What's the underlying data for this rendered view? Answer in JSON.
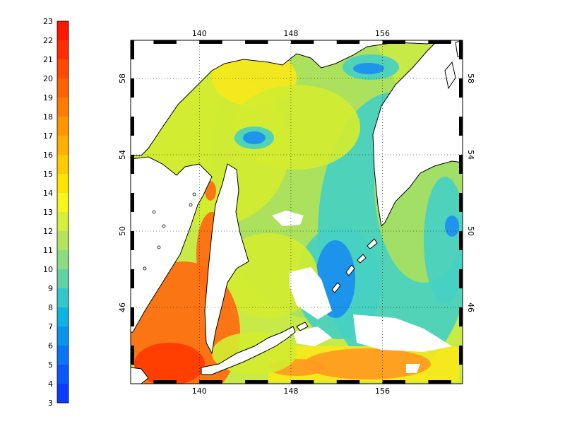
{
  "colorbar": {
    "labels": [
      "23",
      "22",
      "21",
      "20",
      "19",
      "18",
      "17",
      "16",
      "15",
      "14",
      "13",
      "12",
      "11",
      "10",
      "9",
      "8",
      "7",
      "6",
      "5",
      "4",
      "3"
    ],
    "colors": [
      "#ff1800",
      "#ff2e00",
      "#ff4800",
      "#ff6200",
      "#ff7c00",
      "#ff9600",
      "#ffb000",
      "#ffca00",
      "#ffe400",
      "#f6f61c",
      "#d6ee3e",
      "#b4e45e",
      "#8cdc82",
      "#62d2a4",
      "#34c6c8",
      "#10b2e4",
      "#0a94ee",
      "#0a76f4",
      "#0a58f8",
      "#0a3cfc",
      "#0a24ff"
    ]
  },
  "map": {
    "lon_labels": [
      "140",
      "148",
      "156"
    ],
    "lat_labels": [
      "58",
      "54",
      "50",
      "46"
    ],
    "lon_ticks": [
      140,
      148,
      156
    ],
    "lat_ticks": [
      58,
      54,
      50,
      46
    ],
    "lon_range": [
      134,
      163
    ],
    "lat_range": [
      42,
      60
    ],
    "colors": {
      "warm": "#ff6a10",
      "hot": "#ff3a00",
      "orange": "#ff9a20",
      "yellow": "#f6e81a",
      "yellowgreen": "#d2ec30",
      "green": "#a8e060",
      "cyan": "#46d0c2",
      "blue": "#1a8ef0",
      "deepblue": "#1446e0",
      "land": "#ffffff",
      "coast": "#000000"
    }
  }
}
